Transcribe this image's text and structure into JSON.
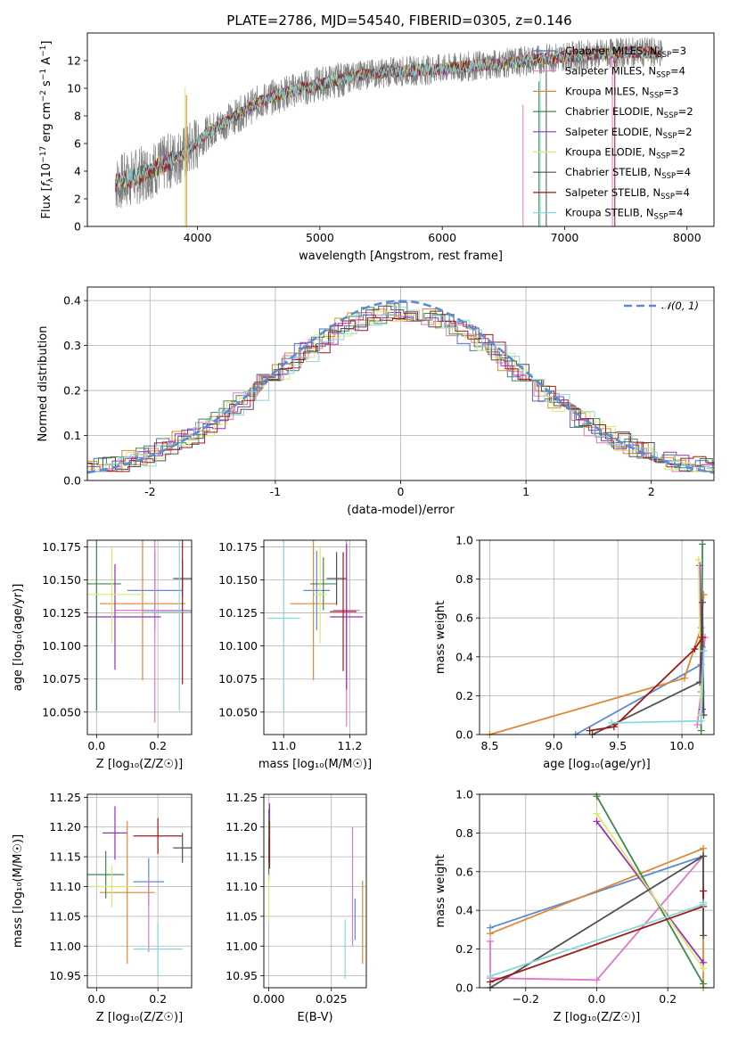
{
  "title": "PLATE=2786, MJD=54540, FIBERID=0305, z=0.146",
  "chart_data": [
    {
      "id": "spectrum",
      "type": "line",
      "xlabel": "wavelength [Angstrom, rest frame]",
      "ylabel": "Flux [f_λ 10^-17 erg cm^-2 s^-1 A^-1]",
      "xlim": [
        3100,
        8220
      ],
      "ylim": [
        0,
        14
      ],
      "xticks": [
        4000,
        5000,
        6000,
        7000,
        8000
      ],
      "yticks": [
        0,
        2,
        4,
        6,
        8,
        10,
        12
      ],
      "continuum_knots": [
        [
          3300,
          3.0
        ],
        [
          3500,
          3.6
        ],
        [
          3700,
          4.4
        ],
        [
          3900,
          5.3
        ],
        [
          4100,
          6.9
        ],
        [
          4300,
          7.9
        ],
        [
          4500,
          9.0
        ],
        [
          4800,
          9.9
        ],
        [
          5000,
          10.3
        ],
        [
          5300,
          10.9
        ],
        [
          5600,
          11.2
        ],
        [
          6000,
          11.4
        ],
        [
          6500,
          11.8
        ],
        [
          7000,
          12.3
        ],
        [
          7500,
          12.6
        ],
        [
          7800,
          12.6
        ]
      ],
      "legend": [
        {
          "label": "Chabrier MILES, N",
          "sub": "SSP",
          "post": "=3",
          "color": "#4c72b0"
        },
        {
          "label": "Salpeter MILES, N",
          "sub": "SSP",
          "post": "=4",
          "color": "#e377c2"
        },
        {
          "label": "Kroupa MILES, N",
          "sub": "SSP",
          "post": "=3",
          "color": "#dd8833"
        },
        {
          "label": "Chabrier ELODIE, N",
          "sub": "SSP",
          "post": "=2",
          "color": "#3a8a4c"
        },
        {
          "label": "Salpeter ELODIE, N",
          "sub": "SSP",
          "post": "=2",
          "color": "#9b30b8"
        },
        {
          "label": "Kroupa ELODIE, N",
          "sub": "SSP",
          "post": "=2",
          "color": "#dbe870"
        },
        {
          "label": "Chabrier STELIB, N",
          "sub": "SSP",
          "post": "=4",
          "color": "#505050"
        },
        {
          "label": "Salpeter STELIB, N",
          "sub": "SSP",
          "post": "=4",
          "color": "#a01818"
        },
        {
          "label": "Kroupa STELIB, N",
          "sub": "SSP",
          "post": "=4",
          "color": "#86d8dc"
        }
      ]
    },
    {
      "id": "residuals",
      "type": "histogram",
      "xlabel": "(data-model)/error",
      "ylabel": "Normed distribution",
      "xlim": [
        -2.5,
        2.5
      ],
      "ylim": [
        0,
        0.43
      ],
      "xticks": [
        -2,
        -1,
        0,
        1,
        2
      ],
      "yticks": [
        0.0,
        0.1,
        0.2,
        0.3,
        0.4
      ],
      "legend_label": "𝒩(0, 1)",
      "gauss_color": "#5b8bd6"
    },
    {
      "id": "age-vs-Z",
      "type": "errorbar",
      "xlabel": "Z [log₁₀(Z/Z☉)]",
      "ylabel": "age  [log₁₀(age/yr)]",
      "xlim": [
        -0.03,
        0.31
      ],
      "ylim": [
        10.033,
        10.18
      ],
      "xticks": [
        0.0,
        0.2
      ],
      "yticks": [
        10.05,
        10.075,
        10.1,
        10.125,
        10.15,
        10.175
      ],
      "points": [
        {
          "color": "#5b8bd6",
          "x": 0.19,
          "xerr": 0.09,
          "y": 10.142,
          "yerr": 0.03
        },
        {
          "color": "#e377c2",
          "x": 0.19,
          "xerr": 0.13,
          "y": 10.127,
          "yerr": 0.085
        },
        {
          "color": "#dd8833",
          "x": 0.15,
          "xerr": 0.14,
          "y": 10.132,
          "yerr": 0.058
        },
        {
          "color": "#3a8a4c",
          "x": 0.0,
          "xerr": 0.08,
          "y": 10.147,
          "yerr": 0.096
        },
        {
          "color": "#9b30b8",
          "x": 0.06,
          "xerr": 0.15,
          "y": 10.122,
          "yerr": 0.04
        },
        {
          "color": "#dbe870",
          "x": 0.05,
          "xerr": 0.11,
          "y": 10.139,
          "yerr": 0.037
        },
        {
          "color": "#505050",
          "x": 0.28,
          "xerr": 0.03,
          "y": 10.151,
          "yerr": 0.014
        },
        {
          "color": "#a01818",
          "x": 0.28,
          "xerr": 0.1,
          "y": 10.126,
          "yerr": 0.055
        },
        {
          "color": "#86d8dc",
          "x": 0.27,
          "xerr": 0.12,
          "y": 10.126,
          "yerr": 0.075
        }
      ]
    },
    {
      "id": "age-vs-mass",
      "type": "errorbar",
      "xlabel": "mass [log₁₀(M/M☉)]",
      "ylabel": "",
      "xlim": [
        10.94,
        11.25
      ],
      "ylim": [
        10.033,
        10.18
      ],
      "xticks": [
        11.0,
        11.2
      ],
      "yticks": [
        10.05,
        10.075,
        10.1,
        10.125,
        10.15,
        10.175
      ],
      "points": [
        {
          "color": "#5b8bd6",
          "x": 11.1,
          "xerr": 0.04,
          "y": 10.142,
          "yerr": 0.03
        },
        {
          "color": "#e377c2",
          "x": 11.19,
          "xerr": 0.04,
          "y": 10.127,
          "yerr": 0.088
        },
        {
          "color": "#dd8833",
          "x": 11.09,
          "xerr": 0.07,
          "y": 10.132,
          "yerr": 0.058
        },
        {
          "color": "#3a8a4c",
          "x": 11.12,
          "xerr": 0.04,
          "y": 10.147,
          "yerr": 0.02
        },
        {
          "color": "#9b30b8",
          "x": 11.19,
          "xerr": 0.05,
          "y": 10.122,
          "yerr": 0.055
        },
        {
          "color": "#dbe870",
          "x": 11.11,
          "xerr": 0.02,
          "y": 10.139,
          "yerr": 0.037
        },
        {
          "color": "#505050",
          "x": 11.16,
          "xerr": 0.03,
          "y": 10.151,
          "yerr": 0.02
        },
        {
          "color": "#a01818",
          "x": 11.18,
          "xerr": 0.04,
          "y": 10.126,
          "yerr": 0.045
        },
        {
          "color": "#86d8dc",
          "x": 11.0,
          "xerr": 0.05,
          "y": 10.121,
          "yerr": 0.07
        }
      ]
    },
    {
      "id": "mass-weight-vs-age",
      "type": "line",
      "xlabel": "age  [log₁₀(age/yr)]",
      "ylabel": "mass weight",
      "xlim": [
        8.42,
        10.25
      ],
      "ylim": [
        0.0,
        1.0
      ],
      "xticks": [
        8.5,
        9.0,
        9.5,
        10.0
      ],
      "yticks": [
        0.0,
        0.2,
        0.4,
        0.6,
        0.8,
        1.0
      ],
      "series": [
        {
          "color": "#5b8bd6",
          "x": [
            9.17,
            10.15,
            10.16
          ],
          "y": [
            0.0,
            0.36,
            0.45
          ]
        },
        {
          "color": "#e377c2",
          "x": [
            10.12,
            10.15,
            10.17,
            10.18
          ],
          "y": [
            0.05,
            0.22,
            0.43,
            0.5
          ]
        },
        {
          "color": "#dd8833",
          "x": [
            8.5,
            10.02,
            10.15,
            10.17
          ],
          "y": [
            0.0,
            0.29,
            0.55,
            0.72
          ]
        },
        {
          "color": "#3a8a4c",
          "x": [
            10.15,
            10.16
          ],
          "y": [
            0.02,
            0.98
          ]
        },
        {
          "color": "#9b30b8",
          "x": [
            10.14,
            10.16
          ],
          "y": [
            0.87,
            0.13
          ]
        },
        {
          "color": "#dbe870",
          "x": [
            10.13,
            10.15
          ],
          "y": [
            0.9,
            0.1
          ]
        },
        {
          "color": "#505050",
          "x": [
            9.3,
            10.14,
            10.16,
            10.17
          ],
          "y": [
            0.0,
            0.27,
            0.68,
            0.1
          ]
        },
        {
          "color": "#a01818",
          "x": [
            9.28,
            9.47,
            10.1,
            10.16
          ],
          "y": [
            0.02,
            0.04,
            0.44,
            0.5
          ]
        },
        {
          "color": "#86d8dc",
          "x": [
            9.45,
            10.15,
            10.17
          ],
          "y": [
            0.06,
            0.07,
            0.43
          ]
        }
      ]
    },
    {
      "id": "mass-vs-Z",
      "type": "errorbar",
      "xlabel": "Z [log₁₀(Z/Z☉)]",
      "ylabel": "mass [log₁₀(M/M☉)]",
      "xlim": [
        -0.03,
        0.31
      ],
      "ylim": [
        10.93,
        11.255
      ],
      "xticks": [
        0.0,
        0.2
      ],
      "yticks": [
        10.95,
        11.0,
        11.05,
        11.1,
        11.15,
        11.2,
        11.25
      ],
      "points": [
        {
          "color": "#5b8bd6",
          "x": 0.17,
          "xerr": 0.05,
          "y": 11.108,
          "yerr": 0.04
        },
        {
          "color": "#e377c2",
          "x": 0.17,
          "xerr": 0.0,
          "y": 11.05,
          "yerr": 0.06
        },
        {
          "color": "#dd8833",
          "x": 0.1,
          "xerr": 0.09,
          "y": 11.09,
          "yerr": 0.12
        },
        {
          "color": "#3a8a4c",
          "x": 0.03,
          "xerr": 0.06,
          "y": 11.12,
          "yerr": 0.04
        },
        {
          "color": "#9b30b8",
          "x": 0.06,
          "xerr": 0.04,
          "y": 11.19,
          "yerr": 0.045
        },
        {
          "color": "#dbe870",
          "x": 0.05,
          "xerr": 0.07,
          "y": 11.1,
          "yerr": 0.035
        },
        {
          "color": "#505050",
          "x": 0.28,
          "xerr": 0.03,
          "y": 11.165,
          "yerr": 0.025
        },
        {
          "color": "#a01818",
          "x": 0.2,
          "xerr": 0.08,
          "y": 11.185,
          "yerr": 0.03
        },
        {
          "color": "#86d8dc",
          "x": 0.2,
          "xerr": 0.08,
          "y": 10.995,
          "yerr": 0.045
        }
      ]
    },
    {
      "id": "mass-vs-EBV",
      "type": "errorbar",
      "xlabel": "E(B-V)",
      "ylabel": "",
      "xlim": [
        -0.002,
        0.039
      ],
      "ylim": [
        10.93,
        11.255
      ],
      "xticks": [
        0.0,
        0.025
      ],
      "tick_labels": [
        "0.000",
        "0.025"
      ],
      "yticks": [
        10.95,
        11.0,
        11.05,
        11.1,
        11.15,
        11.2,
        11.25
      ],
      "points": [
        {
          "color": "#5b8bd6",
          "x": 0.0345,
          "xerr": 0.0,
          "y": 11.045,
          "yerr": 0.035
        },
        {
          "color": "#e377c2",
          "x": 0.0335,
          "xerr": 0.0,
          "y": 11.1,
          "yerr": 0.1
        },
        {
          "color": "#dd8833",
          "x": 0.0375,
          "xerr": 0.0,
          "y": 11.04,
          "yerr": 0.07
        },
        {
          "color": "#3a8a4c",
          "x": 0.0,
          "xerr": 0.0,
          "y": 11.17,
          "yerr": 0.06
        },
        {
          "color": "#9b30b8",
          "x": 0.0003,
          "xerr": 0.0,
          "y": 11.19,
          "yerr": 0.05
        },
        {
          "color": "#dbe870",
          "x": 0.0,
          "xerr": 0.0,
          "y": 11.08,
          "yerr": 0.04
        },
        {
          "color": "#505050",
          "x": 0.0,
          "xerr": 0.0,
          "y": 11.16,
          "yerr": 0.02
        },
        {
          "color": "#a01818",
          "x": 0.0003,
          "xerr": 0.0,
          "y": 11.17,
          "yerr": 0.04
        },
        {
          "color": "#86d8dc",
          "x": 0.0305,
          "xerr": 0.0,
          "y": 10.995,
          "yerr": 0.05
        }
      ]
    },
    {
      "id": "mass-weight-vs-Z",
      "type": "line",
      "xlabel": "Z [log₁₀(Z/Z☉)]",
      "ylabel": "mass weight",
      "xlim": [
        -0.33,
        0.33
      ],
      "ylim": [
        0.0,
        1.0
      ],
      "xticks": [
        -0.2,
        0.0,
        0.2
      ],
      "yticks": [
        0.0,
        0.2,
        0.4,
        0.6,
        0.8,
        1.0
      ],
      "series": [
        {
          "color": "#5b8bd6",
          "x": [
            -0.3,
            0.3,
            0.3
          ],
          "y": [
            0.31,
            0.68,
            0.44
          ]
        },
        {
          "color": "#e377c2",
          "x": [
            -0.3,
            -0.3,
            0.0,
            0.3,
            0.3
          ],
          "y": [
            0.24,
            0.05,
            0.04,
            0.68,
            0.5
          ]
        },
        {
          "color": "#dd8833",
          "x": [
            -0.3,
            0.3,
            0.3
          ],
          "y": [
            0.28,
            0.72,
            0.0
          ]
        },
        {
          "color": "#3a8a4c",
          "x": [
            0.0,
            0.3
          ],
          "y": [
            0.99,
            0.02
          ]
        },
        {
          "color": "#9b30b8",
          "x": [
            0.0,
            0.3
          ],
          "y": [
            0.86,
            0.13
          ]
        },
        {
          "color": "#dbe870",
          "x": [
            0.0,
            0.3
          ],
          "y": [
            0.9,
            0.1
          ]
        },
        {
          "color": "#505050",
          "x": [
            -0.3,
            0.3,
            0.3
          ],
          "y": [
            0.0,
            0.68,
            0.27
          ]
        },
        {
          "color": "#a01818",
          "x": [
            -0.3,
            0.3,
            0.3
          ],
          "y": [
            0.03,
            0.42,
            0.5
          ]
        },
        {
          "color": "#86d8dc",
          "x": [
            -0.3,
            0.3,
            0.3
          ],
          "y": [
            0.06,
            0.43,
            0.44
          ]
        }
      ]
    }
  ]
}
